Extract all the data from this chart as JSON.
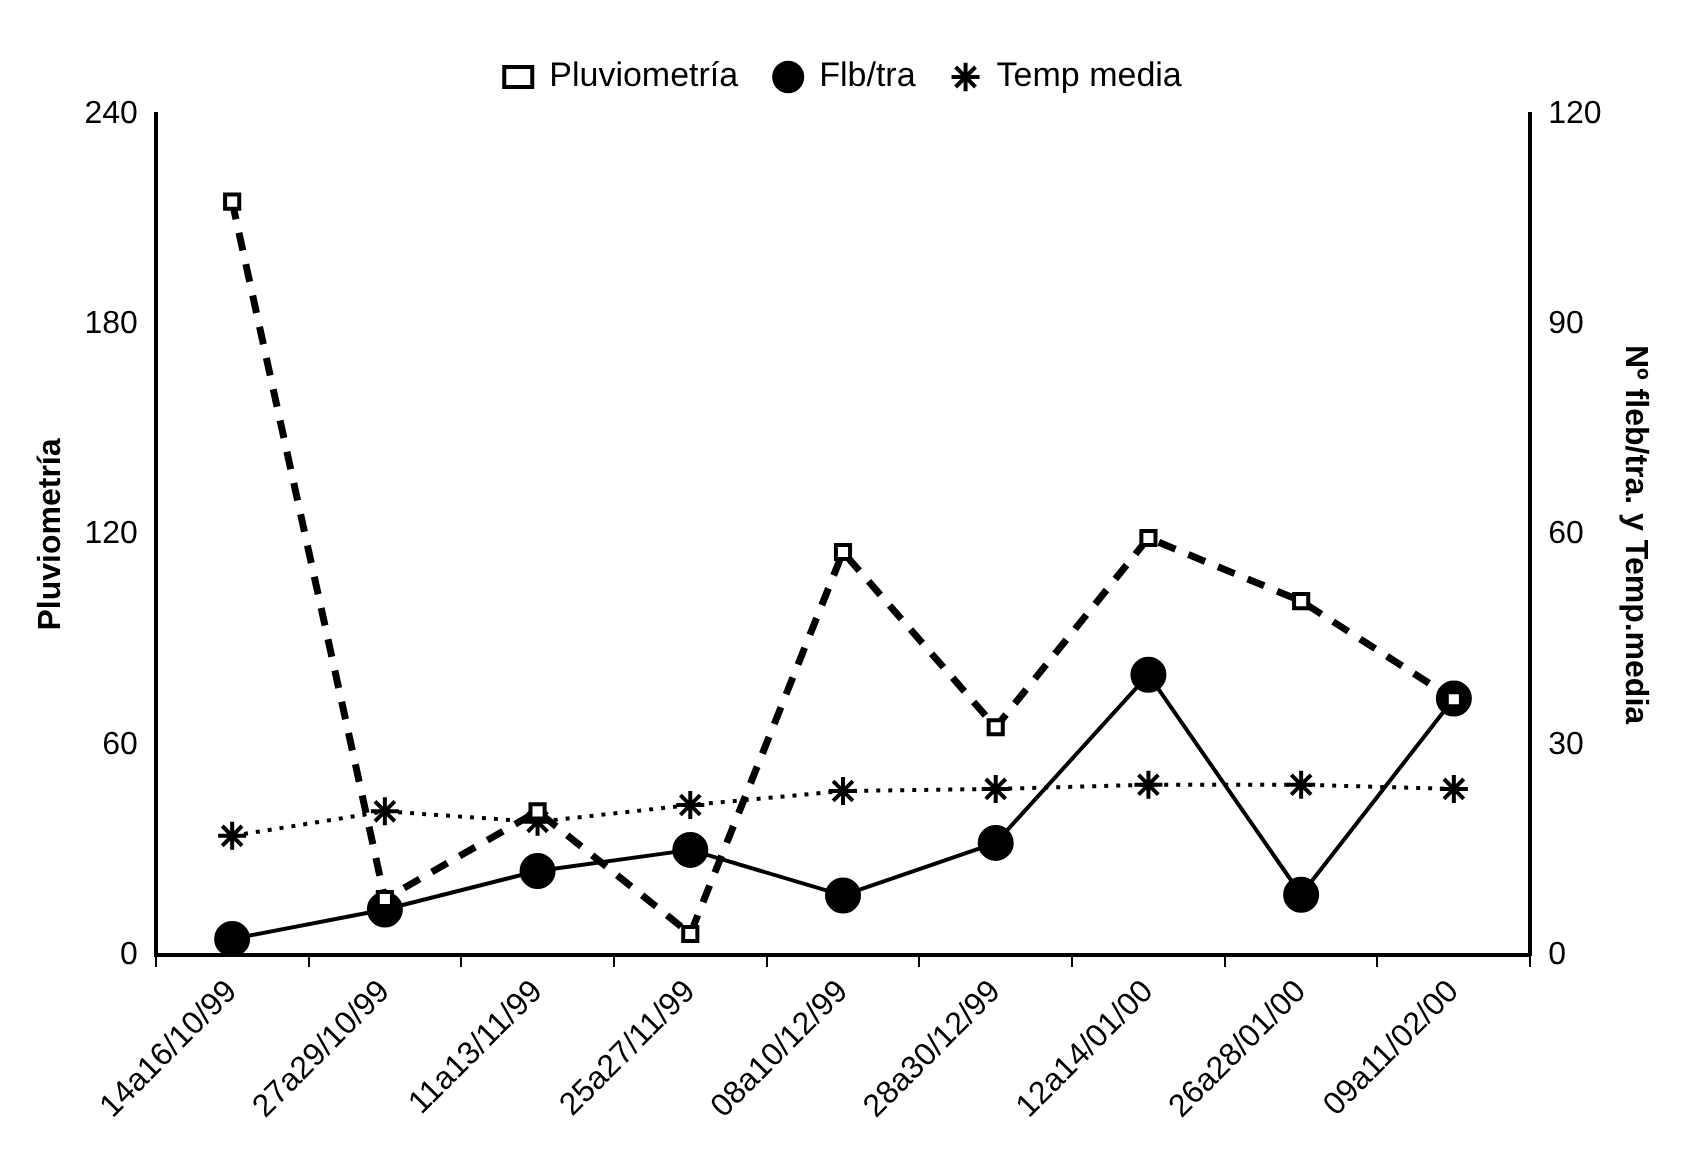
{
  "chart_data": {
    "type": "line",
    "categories": [
      "14a16/10/99",
      "27a29/10/99",
      "11a13/11/99",
      "25a27/11/99",
      "08a10/12/99",
      "28a30/12/99",
      "12a14/01/00",
      "26a28/01/00",
      "09a11/02/00"
    ],
    "series": [
      {
        "name": "Pluviometría",
        "color": "#000000",
        "marker": "square",
        "line_style": "dashed",
        "values": [
          215,
          16,
          41,
          6,
          115,
          65,
          119,
          101,
          73
        ]
      },
      {
        "name": "Flb/tra",
        "color": "#000000",
        "marker": "circle",
        "line_style": "solid",
        "axis": "y2",
        "values": [
          2.3,
          6.5,
          12,
          15,
          8.5,
          16,
          40,
          8.6,
          36.6
        ]
      },
      {
        "name": "Temp media",
        "color": "#000000",
        "marker": "cross",
        "line_style": "dotted",
        "axis": "y2",
        "values": [
          17,
          20.5,
          19,
          21.4,
          23.4,
          23.7,
          24.3,
          24.3,
          23.7
        ]
      }
    ],
    "ylabel": "Pluviometría",
    "y2label": "Nº fleb/tra. y Temp.media",
    "ylim": [
      0,
      240
    ],
    "yticks": [
      0,
      60,
      120,
      180,
      240
    ],
    "y2lim": [
      0,
      120
    ],
    "y2ticks": [
      0,
      30,
      60,
      90,
      120
    ],
    "grid": false,
    "legend": "top"
  }
}
